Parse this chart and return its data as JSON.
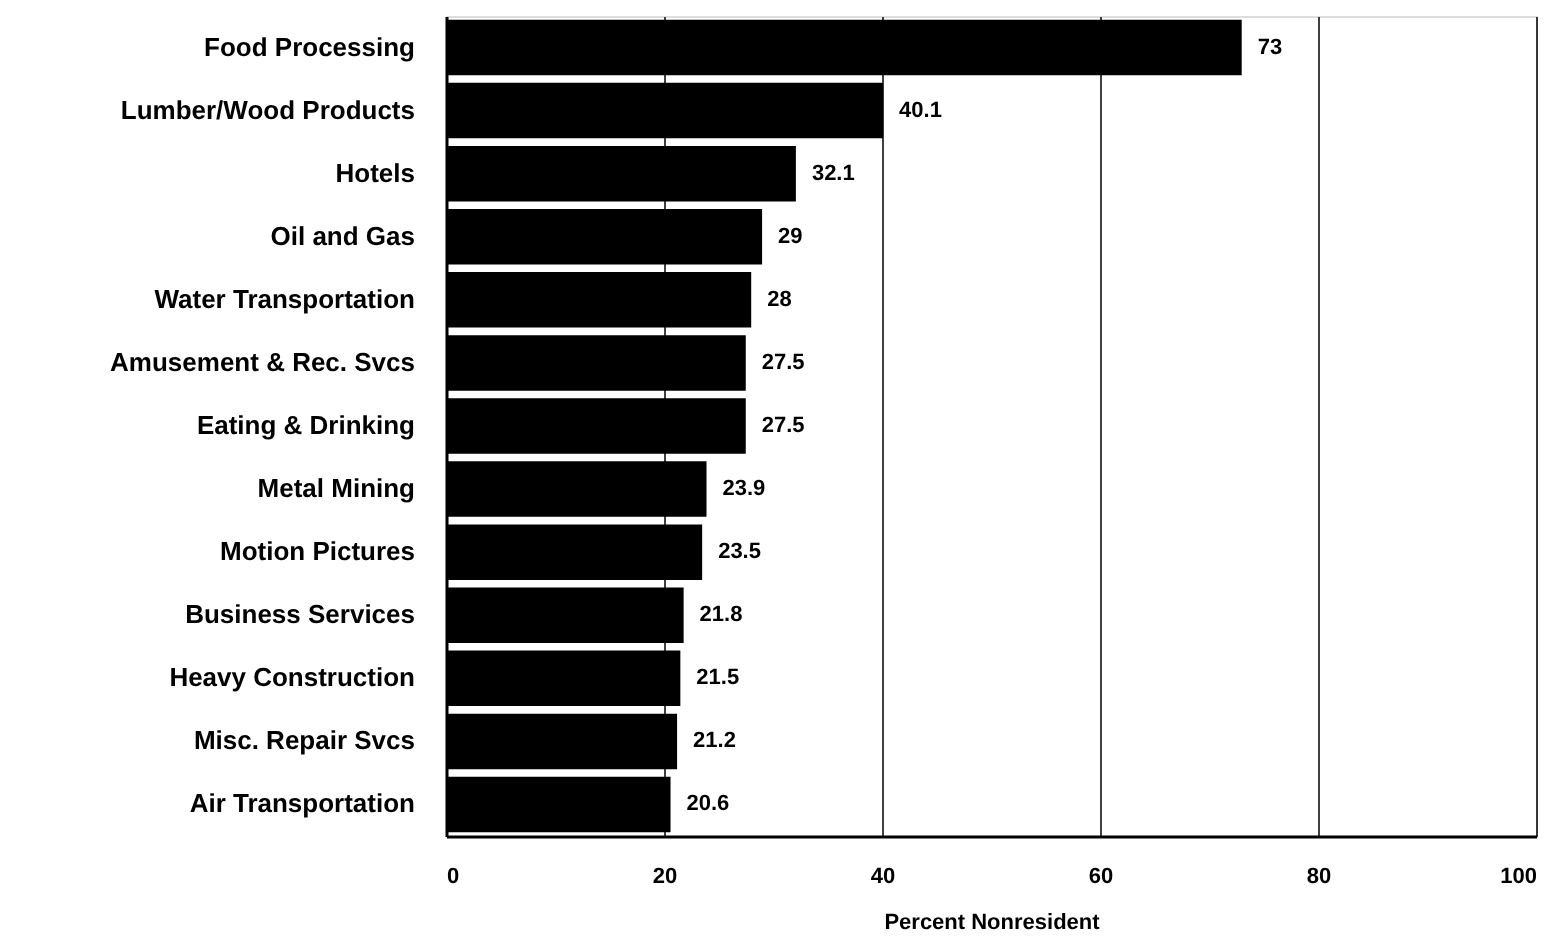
{
  "chart_data": {
    "type": "bar",
    "orientation": "horizontal",
    "xlabel": "Percent Nonresident",
    "categories": [
      "Food Processing",
      "Lumber/Wood Products",
      "Hotels",
      "Oil and Gas",
      "Water Transportation",
      "Amusement & Rec. Svcs",
      "Eating & Drinking",
      "Metal Mining",
      "Motion Pictures",
      "Business Services",
      "Heavy Construction",
      "Misc. Repair Svcs",
      "Air Transportation"
    ],
    "values": [
      73,
      40.1,
      32.1,
      29,
      28,
      27.5,
      27.5,
      23.9,
      23.5,
      21.8,
      21.5,
      21.2,
      20.6
    ],
    "color": "#000000",
    "xlim": [
      0,
      100
    ],
    "xticks": [
      0,
      20,
      40,
      60,
      80,
      100
    ],
    "grid": "x",
    "data_labels": true
  }
}
